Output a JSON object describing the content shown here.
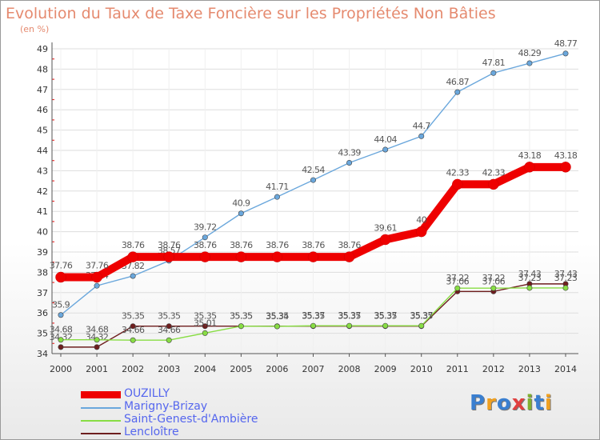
{
  "title": "Evolution du Taux de Taxe Foncière sur les Propriétés Non Bâties",
  "unit_label": "(en %)",
  "logo": {
    "text": "Proxiti",
    "colors": [
      "#3a7fd0",
      "#f0a020",
      "#3a7fd0",
      "#e04040",
      "#80b030",
      "#3a7fd0",
      "#f0a020"
    ]
  },
  "chart_data": {
    "type": "line",
    "x": [
      "2000",
      "2001",
      "2002",
      "2003",
      "2004",
      "2005",
      "2006",
      "2007",
      "2008",
      "2009",
      "2010",
      "2011",
      "2012",
      "2013",
      "2014"
    ],
    "ylim": [
      34,
      49
    ],
    "yticks": [
      "34",
      "35",
      "36",
      "37",
      "38",
      "39",
      "40",
      "41",
      "42",
      "43",
      "44",
      "45",
      "46",
      "47",
      "48",
      "49"
    ],
    "grid": "y",
    "legend_position": "bottom-left",
    "series": [
      {
        "name": "Lencloître",
        "color": "#6e1e1e",
        "values": [
          34.32,
          34.32,
          35.35,
          35.35,
          35.35,
          35.35,
          35.35,
          35.35,
          35.35,
          35.35,
          35.35,
          37.06,
          37.06,
          37.43,
          37.43
        ],
        "labels": [
          "34.32",
          "34.32",
          "35.35",
          "35.35",
          "35.35",
          "35.35",
          "35.35",
          "35.35",
          "35.35",
          "35.35",
          "35.35",
          "37.06",
          "37.06",
          "37.43",
          "37.43"
        ]
      },
      {
        "name": "Saint-Genest-d'Ambière",
        "color": "#88dd44",
        "values": [
          34.68,
          34.68,
          34.66,
          34.66,
          35.01,
          35.35,
          35.34,
          35.37,
          35.37,
          35.37,
          35.37,
          37.22,
          37.22,
          37.23,
          37.23
        ],
        "labels": [
          "34.68",
          "34.68",
          "34.66",
          "34.66",
          "35.01",
          "35.35",
          "35.34",
          "35.37",
          "35.37",
          "35.37",
          "35.37",
          "37.22",
          "37.22",
          "37.23",
          "37.23"
        ]
      },
      {
        "name": "Marigny-Brizay",
        "color": "#6aa7dc",
        "values": [
          35.9,
          37.34,
          37.82,
          38.57,
          39.72,
          40.9,
          41.71,
          42.54,
          43.39,
          44.04,
          44.7,
          46.87,
          47.81,
          48.29,
          48.77
        ],
        "labels": [
          "35.9",
          "37.34",
          "37.82",
          "38.57",
          "39.72",
          "40.9",
          "41.71",
          "42.54",
          "43.39",
          "44.04",
          "44.7",
          "46.87",
          "47.81",
          "48.29",
          "48.77"
        ]
      },
      {
        "name": "OUZILLY",
        "color": "#ee0000",
        "values": [
          37.76,
          37.76,
          38.76,
          38.76,
          38.76,
          38.76,
          38.76,
          38.76,
          38.76,
          39.61,
          40,
          42.33,
          42.33,
          43.18,
          43.18
        ],
        "labels": [
          "37.76",
          "37.76",
          "38.76",
          "38.76",
          "38.76",
          "38.76",
          "38.76",
          "38.76",
          "38.76",
          "39.61",
          "40",
          "42.33",
          "42.33",
          "43.18",
          "43.18"
        ]
      }
    ]
  },
  "legend": [
    {
      "label": "OUZILLY",
      "color": "#ee0000"
    },
    {
      "label": "Marigny-Brizay",
      "color": "#6aa7dc"
    },
    {
      "label": "Saint-Genest-d'Ambière",
      "color": "#88dd44"
    },
    {
      "label": "Lencloître",
      "color": "#6e1e1e"
    }
  ]
}
